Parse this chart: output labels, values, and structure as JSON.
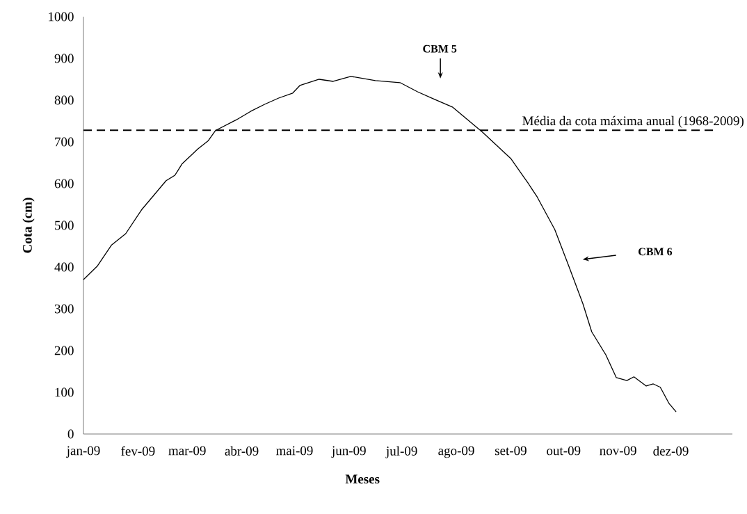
{
  "chart_data": {
    "type": "line",
    "xlabel": "Meses",
    "ylabel": "Cota (cm)",
    "x": [
      "2009-01-01",
      "2009-01-09",
      "2009-01-17",
      "2009-01-25",
      "2009-02-03",
      "2009-02-09",
      "2009-02-17",
      "2009-02-22",
      "2009-02-26",
      "2009-03-07",
      "2009-03-13",
      "2009-03-17",
      "2009-03-29",
      "2009-04-06",
      "2009-04-14",
      "2009-04-22",
      "2009-04-30",
      "2009-05-04",
      "2009-05-15",
      "2009-05-23",
      "2009-06-02",
      "2009-06-16",
      "2009-06-30",
      "2009-07-10",
      "2009-07-19",
      "2009-07-30",
      "2009-08-16",
      "2009-09-01",
      "2009-09-11",
      "2009-09-16",
      "2009-09-26",
      "2009-10-04",
      "2009-10-12",
      "2009-10-17",
      "2009-10-25",
      "2009-10-31",
      "2009-11-06",
      "2009-11-10",
      "2009-11-17",
      "2009-11-21",
      "2009-11-25",
      "2009-11-30",
      "2009-12-04"
    ],
    "series": [
      {
        "color": "#000000",
        "values": [
          370,
          403,
          453,
          480,
          537,
          567,
          607,
          620,
          647,
          683,
          703,
          727,
          753,
          773,
          790,
          805,
          817,
          835,
          850,
          845,
          857,
          847,
          842,
          820,
          803,
          783,
          723,
          660,
          600,
          568,
          490,
          402,
          312,
          245,
          190,
          135,
          128,
          137,
          115,
          120,
          112,
          73,
          53
        ]
      }
    ],
    "xlim": [
      "2009-01-01",
      "2010-01-05"
    ],
    "ylim": [
      0,
      1000
    ],
    "xticks": [
      {
        "value": "2009-01-01",
        "label": "jan-09"
      },
      {
        "value": "2009-02-01",
        "label": "fev-09"
      },
      {
        "value": "2009-03-01",
        "label": "mar-09"
      },
      {
        "value": "2009-04-01",
        "label": "abr-09"
      },
      {
        "value": "2009-05-01",
        "label": "mai-09"
      },
      {
        "value": "2009-06-01",
        "label": "jun-09"
      },
      {
        "value": "2009-07-01",
        "label": "jul-09"
      },
      {
        "value": "2009-08-01",
        "label": "ago-09"
      },
      {
        "value": "2009-09-01",
        "label": "set-09"
      },
      {
        "value": "2009-10-01",
        "label": "out-09"
      },
      {
        "value": "2009-11-01",
        "label": "nov-09"
      },
      {
        "value": "2009-12-01",
        "label": "dez-09"
      }
    ],
    "yticks": [
      0,
      100,
      200,
      300,
      400,
      500,
      600,
      700,
      800,
      900,
      1000
    ],
    "ref_lines": [
      {
        "axis": "y",
        "value": 728,
        "label": "Média da cota máxima anual (1968-2009)",
        "line_style": "dashed",
        "color": "#000000"
      }
    ],
    "annotations": [
      "CBM 5",
      "CBM 6"
    ],
    "grid": false,
    "marker": "none",
    "line_style": "solid"
  }
}
